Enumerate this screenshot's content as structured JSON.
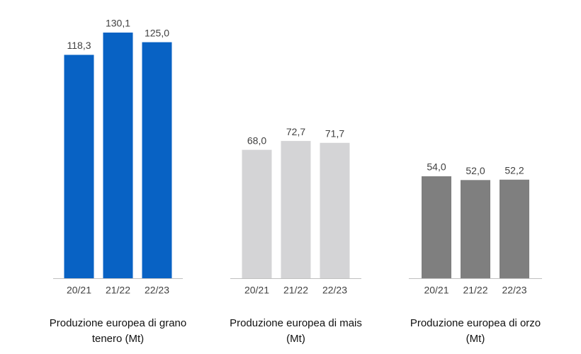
{
  "chart_data": [
    {
      "type": "bar",
      "title": "Produzione europea di grano tenero (Mt)",
      "categories": [
        "20/21",
        "21/22",
        "22/23"
      ],
      "values": [
        118.3,
        130.1,
        125.0
      ],
      "value_labels": [
        "118,3",
        "130,1",
        "125,0"
      ],
      "color": "#0862c4"
    },
    {
      "type": "bar",
      "title": "Produzione europea di mais (Mt)",
      "categories": [
        "20/21",
        "21/22",
        "22/23"
      ],
      "values": [
        68.0,
        72.7,
        71.7
      ],
      "value_labels": [
        "68,0",
        "72,7",
        "71,7"
      ],
      "color": "#d4d4d6"
    },
    {
      "type": "bar",
      "title": "Produzione europea di orzo (Mt)",
      "categories": [
        "20/21",
        "21/22",
        "22/23"
      ],
      "values": [
        54.0,
        52.0,
        52.2
      ],
      "value_labels": [
        "54,0",
        "52,0",
        "52,2"
      ],
      "color": "#7f7f7f"
    }
  ]
}
